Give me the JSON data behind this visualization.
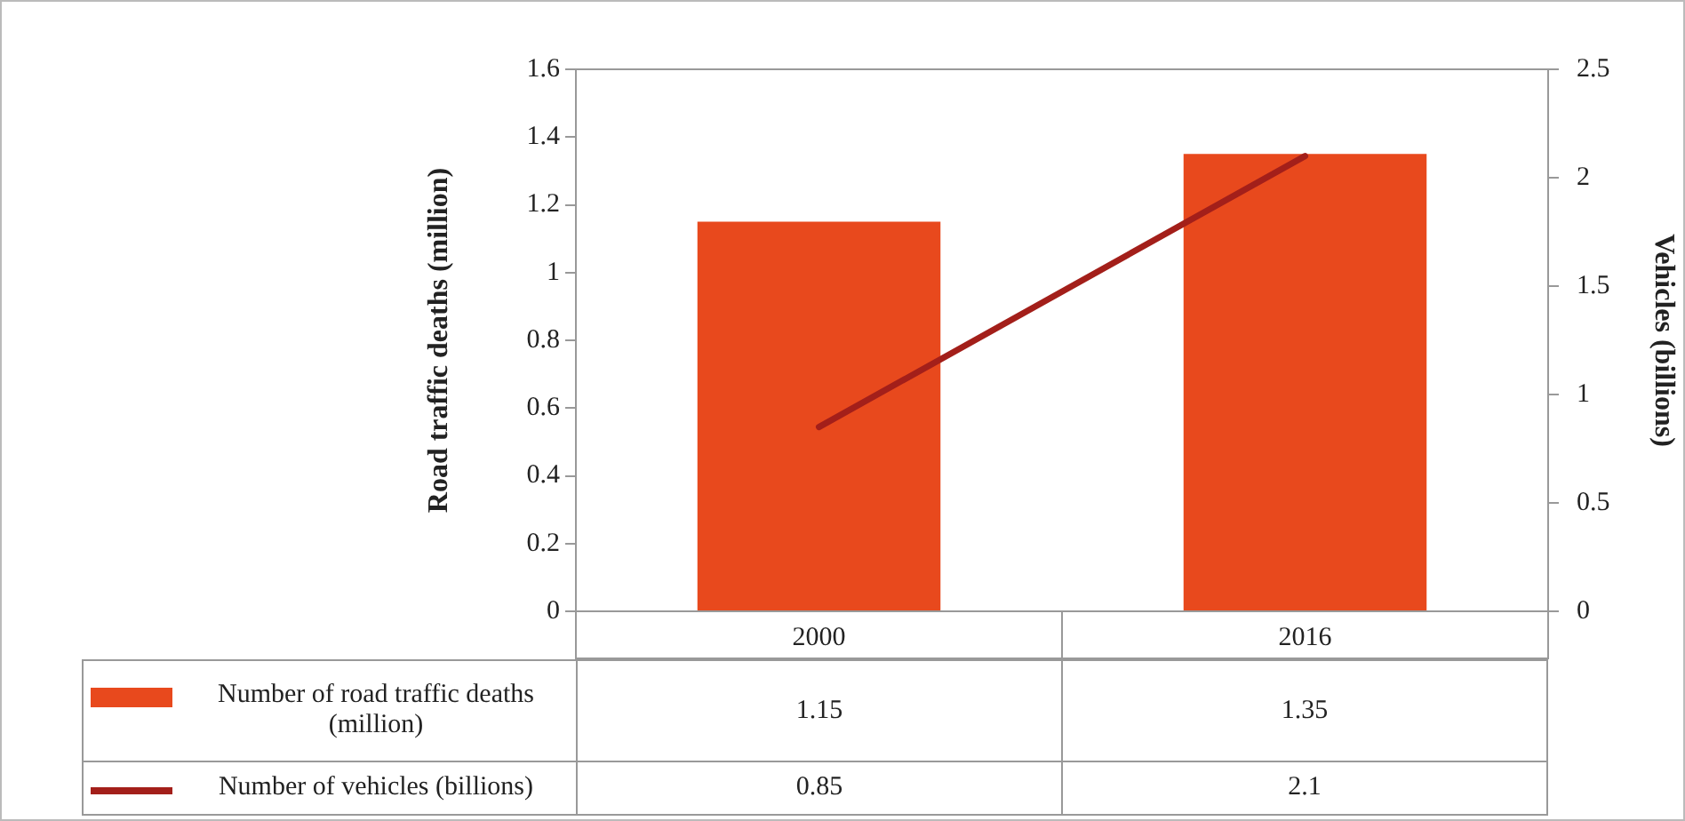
{
  "chart_data": {
    "type": "bar",
    "categories": [
      "2000",
      "2016"
    ],
    "ylabel": "Road traffic deaths (million)",
    "y2label": "Vehicles (billions)",
    "ylim": [
      0,
      1.6
    ],
    "yticks": [
      0,
      0.2,
      0.4,
      0.6,
      0.8,
      1,
      1.2,
      1.4,
      1.6
    ],
    "y2lim": [
      0,
      2.5
    ],
    "y2ticks": [
      0,
      0.5,
      1,
      1.5,
      2,
      2.5
    ],
    "grid": false,
    "legend": "bottom",
    "data_labels": true,
    "marker": "none",
    "series": [
      {
        "name": "Number of road traffic deaths (million)",
        "color": "#e8491d",
        "values": [
          1.15,
          1.35
        ]
      },
      {
        "name": "Number of vehicles (billions)",
        "type": "line",
        "axis": "y2",
        "color": "#a31f1a",
        "values": [
          0.85,
          2.1
        ]
      }
    ]
  }
}
